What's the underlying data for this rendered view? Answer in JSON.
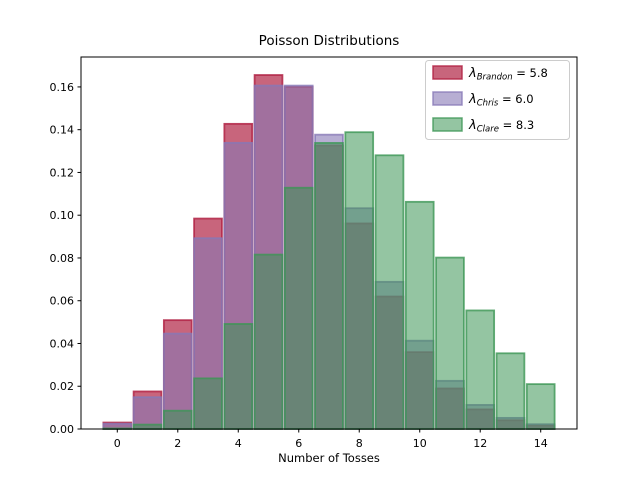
{
  "window": {
    "kind": "matplotlib-figure",
    "background": "#ffffff"
  },
  "chart_data": {
    "type": "bar",
    "title": "Poisson Distributions",
    "xlabel": "Number of Tosses",
    "ylabel": "",
    "x": [
      0,
      1,
      2,
      3,
      4,
      5,
      6,
      7,
      8,
      9,
      10,
      11,
      12,
      13,
      14
    ],
    "series": [
      {
        "name": "λ_Brandon = 5.8",
        "person": "Brandon",
        "lambda": 5.8,
        "color": "#B12345",
        "fill_opacity": 0.7,
        "stroke_opacity": 0.85,
        "values": [
          0.003027,
          0.017557,
          0.050916,
          0.098438,
          0.142735,
          0.165572,
          0.160053,
          0.132615,
          0.096146,
          0.061961,
          0.035937,
          0.018949,
          0.009159,
          0.004086,
          0.001693
        ]
      },
      {
        "name": "λ_Chris = 6.0",
        "person": "Chris",
        "lambda": 6.0,
        "color": "#8778B6",
        "fill_opacity": 0.6,
        "stroke_opacity": 0.8,
        "values": [
          0.002479,
          0.014873,
          0.044618,
          0.089235,
          0.133853,
          0.160623,
          0.160623,
          0.137677,
          0.103258,
          0.068838,
          0.041303,
          0.022529,
          0.011264,
          0.005199,
          0.002228
        ]
      },
      {
        "name": "λ_Clare = 8.3",
        "person": "Clare",
        "lambda": 8.3,
        "color": "#3C9655",
        "fill_opacity": 0.55,
        "stroke_opacity": 0.8,
        "values": [
          0.000249,
          0.002063,
          0.00856,
          0.023683,
          0.049143,
          0.081577,
          0.112848,
          0.133805,
          0.138823,
          0.128026,
          0.106261,
          0.080179,
          0.055457,
          0.035407,
          0.020993
        ]
      }
    ],
    "bar_width": 0.92,
    "xlim": [
      -1.2,
      15.2
    ],
    "ylim": [
      0,
      0.174
    ],
    "xticks": [
      0,
      2,
      4,
      6,
      8,
      10,
      12,
      14
    ],
    "xticklabels": [
      "0",
      "2",
      "4",
      "6",
      "8",
      "10",
      "12",
      "14"
    ],
    "yticks": [
      0.0,
      0.02,
      0.04,
      0.06,
      0.08,
      0.1,
      0.12,
      0.14,
      0.16
    ],
    "yticklabels": [
      "0.00",
      "0.02",
      "0.04",
      "0.06",
      "0.08",
      "0.10",
      "0.12",
      "0.14",
      "0.16"
    ],
    "grid": false,
    "legend_position": "upper right"
  },
  "legend": {
    "items": [
      {
        "symbol": "λ",
        "subscript": "Brandon",
        "equals": " = ",
        "value": "5.8"
      },
      {
        "symbol": "λ",
        "subscript": "Chris",
        "equals": " = ",
        "value": "6.0"
      },
      {
        "symbol": "λ",
        "subscript": "Clare",
        "equals": " = ",
        "value": "8.3"
      }
    ],
    "border_color": "#cccccc",
    "background": "#ffffff"
  }
}
